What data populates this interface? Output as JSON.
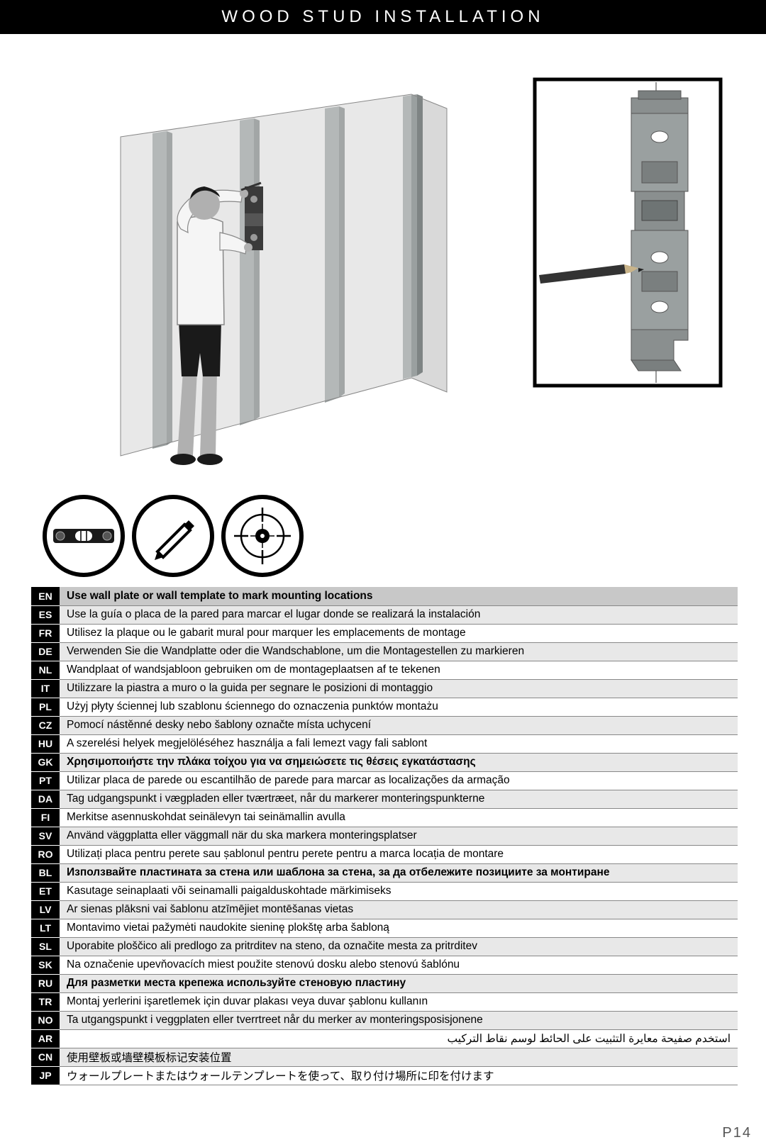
{
  "page_title": "WOOD STUD INSTALLATION",
  "page_number": "P14",
  "colors": {
    "header_bg": "#000000",
    "header_fg": "#ffffff",
    "wall_light": "#d4d4d4",
    "wall_mid": "#bfbfbf",
    "stud": "#9aa0a0",
    "stud_dark": "#7e8484",
    "person_skin": "#b0b0b0",
    "person_shirt": "#f5f5f5",
    "person_short": "#1a1a1a",
    "bracket": "#8a8f8f",
    "row_primary_bg": "#c8c8c8",
    "row_alt_bg": "#e8e8e8",
    "row_border": "#888888"
  },
  "tool_icons": [
    "level-icon",
    "pencil-icon",
    "stud-finder-icon"
  ],
  "languages": [
    {
      "code": "EN",
      "text": "Use wall plate or wall template to mark mounting locations",
      "primary": true
    },
    {
      "code": "ES",
      "text": "Use la guía o placa de la pared para marcar el lugar donde se realizará la instalación"
    },
    {
      "code": "FR",
      "text": "Utilisez la plaque ou le gabarit mural pour marquer les emplacements de montage"
    },
    {
      "code": "DE",
      "text": "Verwenden Sie die Wandplatte oder die Wandschablone, um die Montagestellen zu markieren"
    },
    {
      "code": "NL",
      "text": "Wandplaat of wandsjabloon gebruiken om de montageplaatsen af te tekenen"
    },
    {
      "code": "IT",
      "text": "Utilizzare la piastra a muro o la guida per segnare le posizioni di montaggio"
    },
    {
      "code": "PL",
      "text": "Użyj płyty ściennej lub szablonu ściennego do oznaczenia punktów montażu"
    },
    {
      "code": "CZ",
      "text": "Pomocí nástěnné desky nebo šablony označte místa uchycení"
    },
    {
      "code": "HU",
      "text": "A szerelési helyek megjelöléséhez használja a fali lemezt vagy fali sablont"
    },
    {
      "code": "GK",
      "text": "Χρησιμοποιήστε την πλάκα τοίχου για να σημειώσετε τις θέσεις εγκατάστασης",
      "heavy": true
    },
    {
      "code": "PT",
      "text": "Utilizar placa de parede ou escantilhão de parede para marcar as localizações da armação"
    },
    {
      "code": "DA",
      "text": "Tag udgangspunkt i vægpladen eller tværtræet, når du markerer monteringspunkterne"
    },
    {
      "code": "FI",
      "text": "Merkitse asennuskohdat seinälevyn tai seinämallin avulla"
    },
    {
      "code": "SV",
      "text": "Använd väggplatta eller väggmall när du ska markera monteringsplatser"
    },
    {
      "code": "RO",
      "text": "Utilizați placa pentru perete sau șablonul pentru perete pentru a marca locația de montare"
    },
    {
      "code": "BL",
      "text": "Използвайте пластината за стена или шаблона за стена, за да отбележите позициите за монтиране",
      "heavy": true
    },
    {
      "code": "ET",
      "text": "Kasutage seinaplaati või seinamalli paigalduskohtade märkimiseks"
    },
    {
      "code": "LV",
      "text": "Ar sienas plāksni vai šablonu atzīmējiet montēšanas vietas"
    },
    {
      "code": "LT",
      "text": "Montavimo vietai pažymėti naudokite sieninę plokštę arba šabloną"
    },
    {
      "code": "SL",
      "text": "Uporabite ploščico ali predlogo za pritrditev na steno, da označite mesta za pritrditev"
    },
    {
      "code": "SK",
      "text": "Na označenie upevňovacích miest použite stenovú dosku alebo stenovú šablónu"
    },
    {
      "code": "RU",
      "text": "Для разметки места крепежа используйте стеновую пластину",
      "heavy": true
    },
    {
      "code": "TR",
      "text": "Montaj yerlerini işaretlemek için duvar plakası veya duvar şablonu kullanın"
    },
    {
      "code": "NO",
      "text": "Ta utgangspunkt i veggplaten eller tverrtreet når du merker av monteringsposisjonene"
    },
    {
      "code": "AR",
      "text": "استخدم صفيحة معايرة التثبيت على الحائط لوسم نقاط التركيب",
      "rtl": true
    },
    {
      "code": "CN",
      "text": "使用壁板或墙壁模板标记安装位置"
    },
    {
      "code": "JP",
      "text": "ウォールプレートまたはウォールテンプレートを使って、取り付け場所に印を付けます"
    }
  ]
}
